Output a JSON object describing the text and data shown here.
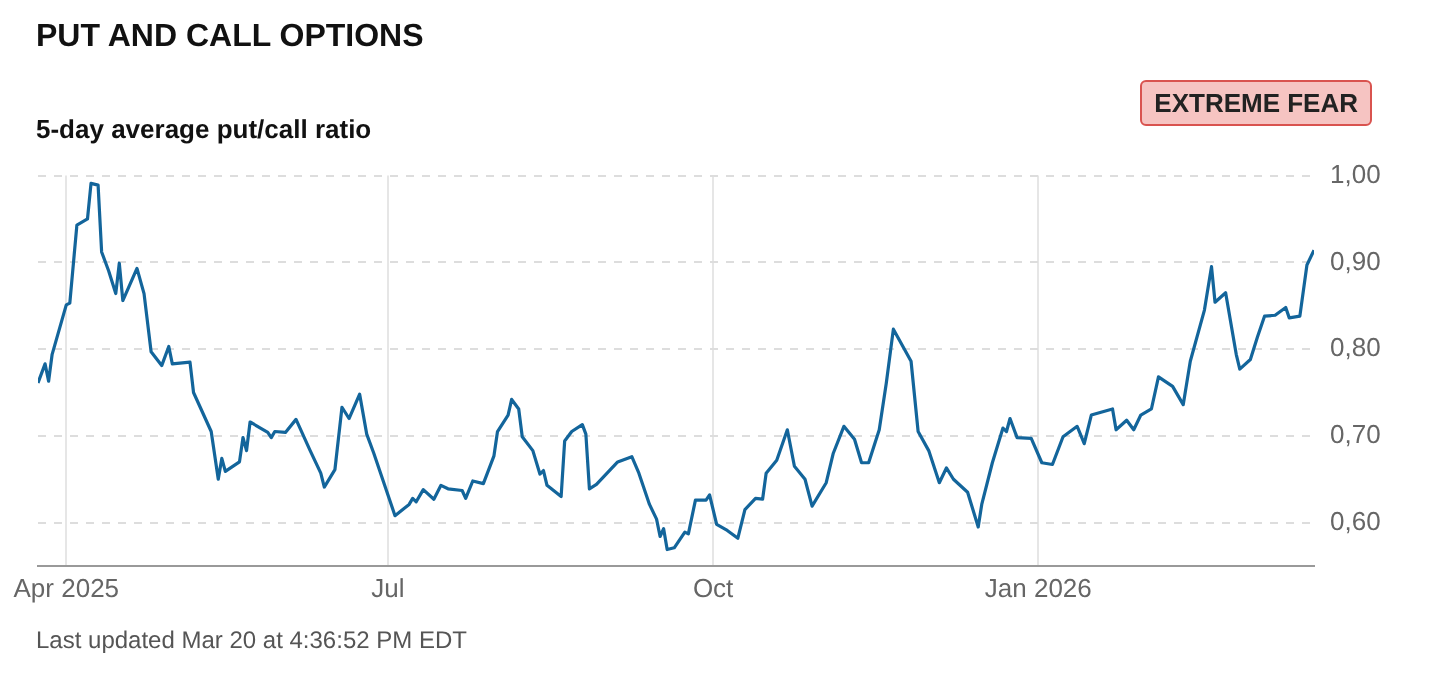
{
  "chart_data": {
    "type": "line",
    "title": "PUT AND CALL OPTIONS",
    "subtitle": "5-day average put/call ratio",
    "annotations": [
      "EXTREME FEAR",
      "Last updated Mar 20 at 4:36:52 PM EDT"
    ],
    "x": [
      "2025-03-24",
      "2025-03-26",
      "2025-03-27",
      "2025-03-28",
      "2025-04-01",
      "2025-04-02",
      "2025-04-04",
      "2025-04-07",
      "2025-04-08",
      "2025-04-10",
      "2025-04-11",
      "2025-04-13",
      "2025-04-15",
      "2025-04-16",
      "2025-04-17",
      "2025-04-21",
      "2025-04-23",
      "2025-04-25",
      "2025-04-28",
      "2025-04-30",
      "2025-05-01",
      "2025-05-06",
      "2025-05-07",
      "2025-05-12",
      "2025-05-14",
      "2025-05-15",
      "2025-05-16",
      "2025-05-20",
      "2025-05-21",
      "2025-05-22",
      "2025-05-23",
      "2025-05-28",
      "2025-05-29",
      "2025-05-30",
      "2025-06-02",
      "2025-06-05",
      "2025-06-09",
      "2025-06-12",
      "2025-06-13",
      "2025-06-16",
      "2025-06-18",
      "2025-06-20",
      "2025-06-23",
      "2025-06-25",
      "2025-06-27",
      "2025-07-03",
      "2025-07-07",
      "2025-07-08",
      "2025-07-09",
      "2025-07-11",
      "2025-07-14",
      "2025-07-16",
      "2025-07-18",
      "2025-07-22",
      "2025-07-23",
      "2025-07-25",
      "2025-07-28",
      "2025-07-31",
      "2025-08-01",
      "2025-08-04",
      "2025-08-05",
      "2025-08-07",
      "2025-08-08",
      "2025-08-11",
      "2025-08-13",
      "2025-08-14",
      "2025-08-15",
      "2025-08-19",
      "2025-08-20",
      "2025-08-22",
      "2025-08-25",
      "2025-08-26",
      "2025-08-27",
      "2025-08-29",
      "2025-09-04",
      "2025-09-08",
      "2025-09-10",
      "2025-09-13",
      "2025-09-15",
      "2025-09-16",
      "2025-09-17",
      "2025-09-18",
      "2025-09-20",
      "2025-09-23",
      "2025-09-24",
      "2025-09-26",
      "2025-09-29",
      "2025-09-30",
      "2025-10-02",
      "2025-10-05",
      "2025-10-08",
      "2025-10-10",
      "2025-10-13",
      "2025-10-15",
      "2025-10-16",
      "2025-10-19",
      "2025-10-22",
      "2025-10-24",
      "2025-10-27",
      "2025-10-29",
      "2025-11-02",
      "2025-11-04",
      "2025-11-07",
      "2025-11-10",
      "2025-11-12",
      "2025-11-14",
      "2025-11-17",
      "2025-11-19",
      "2025-11-21",
      "2025-11-26",
      "2025-11-28",
      "2025-12-01",
      "2025-12-04",
      "2025-12-06",
      "2025-12-08",
      "2025-12-12",
      "2025-12-15",
      "2025-12-16",
      "2025-12-19",
      "2025-12-22",
      "2025-12-23",
      "2025-12-24",
      "2025-12-26",
      "2025-12-30",
      "2026-01-02",
      "2026-01-05",
      "2026-01-08",
      "2026-01-12",
      "2026-01-14",
      "2026-01-16",
      "2026-01-22",
      "2026-01-23",
      "2026-01-26",
      "2026-01-28",
      "2026-01-30",
      "2026-02-02",
      "2026-02-04",
      "2026-02-08",
      "2026-02-11",
      "2026-02-13",
      "2026-02-17",
      "2026-02-19",
      "2026-02-20",
      "2026-02-23",
      "2026-02-26",
      "2026-02-27",
      "2026-03-02",
      "2026-03-04",
      "2026-03-06",
      "2026-03-09",
      "2026-03-12",
      "2026-03-13",
      "2026-03-16",
      "2026-03-18",
      "2026-03-20"
    ],
    "series": [
      {
        "color": "#13659b",
        "values": [
          0.761,
          0.783,
          0.763,
          0.794,
          0.851,
          0.853,
          0.943,
          0.95,
          0.991,
          0.989,
          0.912,
          0.89,
          0.864,
          0.899,
          0.856,
          0.893,
          0.864,
          0.797,
          0.781,
          0.803,
          0.783,
          0.785,
          0.75,
          0.705,
          0.65,
          0.674,
          0.659,
          0.67,
          0.698,
          0.683,
          0.716,
          0.704,
          0.698,
          0.705,
          0.704,
          0.719,
          0.683,
          0.657,
          0.641,
          0.661,
          0.733,
          0.72,
          0.748,
          0.702,
          0.68,
          0.608,
          0.621,
          0.628,
          0.624,
          0.638,
          0.627,
          0.643,
          0.639,
          0.637,
          0.628,
          0.648,
          0.645,
          0.677,
          0.705,
          0.724,
          0.742,
          0.731,
          0.699,
          0.683,
          0.656,
          0.66,
          0.643,
          0.63,
          0.694,
          0.705,
          0.713,
          0.702,
          0.639,
          0.644,
          0.67,
          0.676,
          0.657,
          0.621,
          0.604,
          0.584,
          0.593,
          0.569,
          0.571,
          0.589,
          0.587,
          0.626,
          0.626,
          0.632,
          0.598,
          0.591,
          0.582,
          0.615,
          0.628,
          0.627,
          0.657,
          0.672,
          0.707,
          0.665,
          0.65,
          0.619,
          0.646,
          0.68,
          0.711,
          0.696,
          0.669,
          0.669,
          0.707,
          0.761,
          0.823,
          0.786,
          0.705,
          0.683,
          0.646,
          0.663,
          0.65,
          0.635,
          0.595,
          0.621,
          0.669,
          0.709,
          0.705,
          0.72,
          0.698,
          0.697,
          0.669,
          0.667,
          0.699,
          0.711,
          0.691,
          0.724,
          0.731,
          0.707,
          0.718,
          0.707,
          0.724,
          0.731,
          0.768,
          0.757,
          0.736,
          0.786,
          0.845,
          0.895,
          0.854,
          0.865,
          0.794,
          0.777,
          0.788,
          0.814,
          0.838,
          0.839,
          0.848,
          0.836,
          0.838,
          0.897,
          0.914
        ]
      }
    ],
    "xlim": [
      "2025-03-24",
      "2026-03-20"
    ],
    "xticks": [
      {
        "value": "2025-04-01",
        "label": "Apr 2025"
      },
      {
        "value": "2025-07-01",
        "label": "Jul"
      },
      {
        "value": "2025-10-01",
        "label": "Oct"
      },
      {
        "value": "2026-01-01",
        "label": "Jan 2026"
      }
    ],
    "ylim": [
      0.55,
      1.0
    ],
    "yticks": [
      {
        "value": 0.6,
        "label": "0,60"
      },
      {
        "value": 0.7,
        "label": "0,70"
      },
      {
        "value": 0.8,
        "label": "0,80"
      },
      {
        "value": 0.9,
        "label": "0,90"
      },
      {
        "value": 1.0,
        "label": "1,00"
      }
    ],
    "grid": true,
    "legend": false,
    "marker": "none",
    "line_style": "solid"
  }
}
